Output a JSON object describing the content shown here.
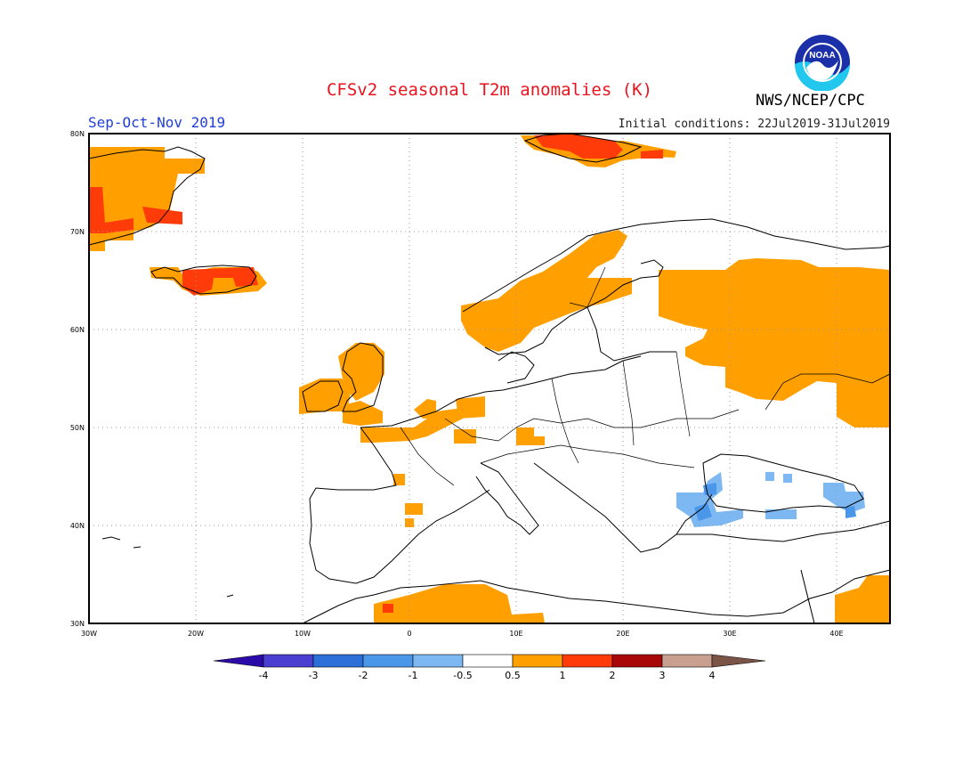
{
  "title": "CFSv2 seasonal T2m anomalies (K)",
  "period": "Sep-Oct-Nov 2019",
  "initial_conditions": "Initial conditions: 22Jul2019-31Jul2019",
  "agency": "NWS/NCEP/CPC",
  "logo_text": "NOAA",
  "map": {
    "lon_labels": [
      "30W",
      "20W",
      "10W",
      "0",
      "10E",
      "20E",
      "30E",
      "40E"
    ],
    "lat_labels": [
      "80N",
      "70N",
      "60N",
      "50N",
      "40N",
      "30N"
    ],
    "grid": true
  },
  "colorbar": {
    "labels": [
      "-4",
      "-3",
      "-2",
      "-1",
      "-0.5",
      "0.5",
      "1",
      "2",
      "3",
      "4"
    ],
    "colors": [
      "#2b0aa8",
      "#4a3fd0",
      "#2c6fd9",
      "#4a97ea",
      "#7db8f2",
      "#ffffff",
      "#ff9f00",
      "#ff3b0a",
      "#a80808",
      "#c9a090",
      "#7a5446"
    ]
  }
}
